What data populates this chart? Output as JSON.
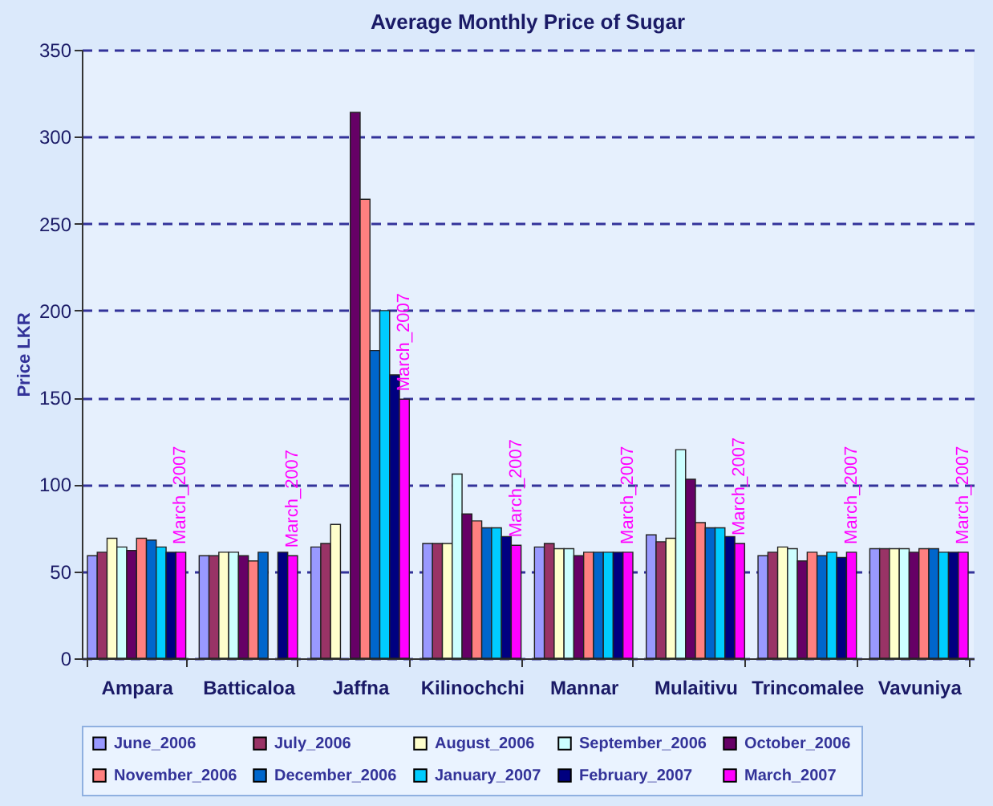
{
  "chart_data": {
    "type": "bar",
    "title": "Average Monthly Price of Sugar",
    "ylabel": "Price LKR",
    "categories": [
      "Ampara",
      "Batticaloa",
      "Jaffna",
      "Kilinochchi",
      "Mannar",
      "Mulaitivu",
      "Trincomalee",
      "Vavuniya"
    ],
    "series": [
      {
        "name": "June_2006",
        "color": "#9999ff",
        "values": [
          59,
          59,
          64,
          66,
          64,
          71,
          59,
          63
        ]
      },
      {
        "name": "July_2006",
        "color": "#993366",
        "values": [
          61,
          59,
          66,
          66,
          66,
          67,
          61,
          63
        ]
      },
      {
        "name": "August_2006",
        "color": "#ffffcc",
        "values": [
          69,
          61,
          77,
          66,
          63,
          69,
          64,
          63
        ]
      },
      {
        "name": "September_2006",
        "color": "#ccffff",
        "values": [
          64,
          61,
          null,
          106,
          63,
          120,
          63,
          63
        ]
      },
      {
        "name": "October_2006",
        "color": "#660066",
        "values": [
          62,
          59,
          314,
          83,
          59,
          103,
          56,
          61
        ]
      },
      {
        "name": "November_2006",
        "color": "#ff8080",
        "values": [
          69,
          56,
          264,
          79,
          61,
          78,
          61,
          63
        ]
      },
      {
        "name": "December_2006",
        "color": "#0066cc",
        "values": [
          68,
          61,
          177,
          75,
          61,
          75,
          59,
          63
        ]
      },
      {
        "name": "January_2007",
        "color": "#00ccff",
        "values": [
          64,
          null,
          200,
          75,
          61,
          75,
          61,
          61
        ]
      },
      {
        "name": "February_2007",
        "color": "#000080",
        "values": [
          61,
          61,
          163,
          70,
          61,
          70,
          58,
          61
        ]
      },
      {
        "name": "March_2007",
        "color": "#ff00ff",
        "values": [
          61,
          59,
          149,
          65,
          61,
          66,
          61,
          61
        ]
      }
    ],
    "annotations": [
      {
        "text": "March_2007",
        "x": "Ampara",
        "y": 61
      },
      {
        "text": "March_2007",
        "x": "Batticaloa",
        "y": 59
      },
      {
        "text": "March_2007",
        "x": "Jaffna",
        "y": 149
      },
      {
        "text": "March_2007",
        "x": "Kilinochchi",
        "y": 65
      },
      {
        "text": "March_2007",
        "x": "Mannar",
        "y": 61
      },
      {
        "text": "March_2007",
        "x": "Mulaitivu",
        "y": 66
      },
      {
        "text": "March_2007",
        "x": "Trincomalee",
        "y": 61
      },
      {
        "text": "March_2007",
        "x": "Vavuniya",
        "y": 61
      }
    ],
    "ylim": [
      0,
      350
    ],
    "yticks": [
      0,
      50,
      100,
      150,
      200,
      250,
      300,
      350
    ],
    "grid": "y",
    "legend": "bottom"
  }
}
